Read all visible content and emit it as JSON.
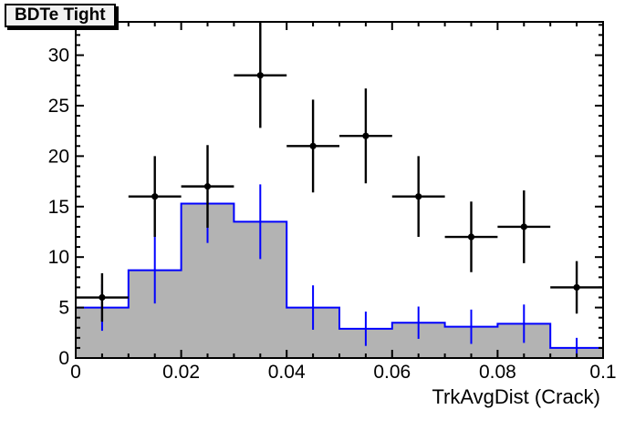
{
  "title": {
    "text": "BDTe Tight"
  },
  "colors": {
    "histogram_fill": "#b3b3b3",
    "histogram_line": "#0000ff",
    "data_color": "#000000",
    "frame_color": "#000000",
    "title_box_bg": "#f2f2f2",
    "background": "#ffffff"
  },
  "axes": {
    "x": {
      "label": "TrkAvgDist (Crack)",
      "min": 0,
      "max": 0.1,
      "major_ticks": [
        0,
        0.02,
        0.04,
        0.06,
        0.08,
        0.1
      ],
      "tick_labels": [
        "0",
        "0.02",
        "0.04",
        "0.06",
        "0.08",
        "0.1"
      ],
      "minor_step": 0.005
    },
    "y": {
      "label": "",
      "min": 0,
      "max": 33.3,
      "major_ticks": [
        0,
        5,
        10,
        15,
        20,
        25,
        30
      ],
      "tick_labels": [
        "0",
        "5",
        "10",
        "15",
        "20",
        "25",
        "30"
      ],
      "minor_step": 1
    }
  },
  "chart_data": {
    "type": "bar",
    "title": "BDTe Tight",
    "xlabel": "TrkAvgDist (Crack)",
    "ylabel": "",
    "xlim": [
      0,
      0.1
    ],
    "ylim": [
      0,
      33.3
    ],
    "grid": false,
    "legend": "none",
    "bin_edges": [
      0,
      0.01,
      0.02,
      0.03,
      0.04,
      0.05,
      0.06,
      0.07,
      0.08,
      0.09,
      0.1
    ],
    "bin_centers": [
      0.005,
      0.015,
      0.025,
      0.035,
      0.045,
      0.055,
      0.065,
      0.075,
      0.085,
      0.095
    ],
    "series": [
      {
        "name": "filled-histogram",
        "type": "histogram-step",
        "values": [
          5.0,
          8.7,
          15.3,
          13.5,
          5.0,
          2.9,
          3.5,
          3.1,
          3.4,
          1.0
        ],
        "errors": [
          2.3,
          3.3,
          3.9,
          3.7,
          2.2,
          1.7,
          1.6,
          1.7,
          1.9,
          1.0
        ]
      },
      {
        "name": "data-points",
        "type": "scatter-errorbar",
        "values": [
          6,
          16,
          17,
          28,
          21,
          22,
          16,
          12,
          13,
          7
        ],
        "errors": [
          2.4,
          4.0,
          4.1,
          5.2,
          4.6,
          4.7,
          4.0,
          3.5,
          3.6,
          2.6
        ],
        "xerr": 0.005
      }
    ]
  }
}
